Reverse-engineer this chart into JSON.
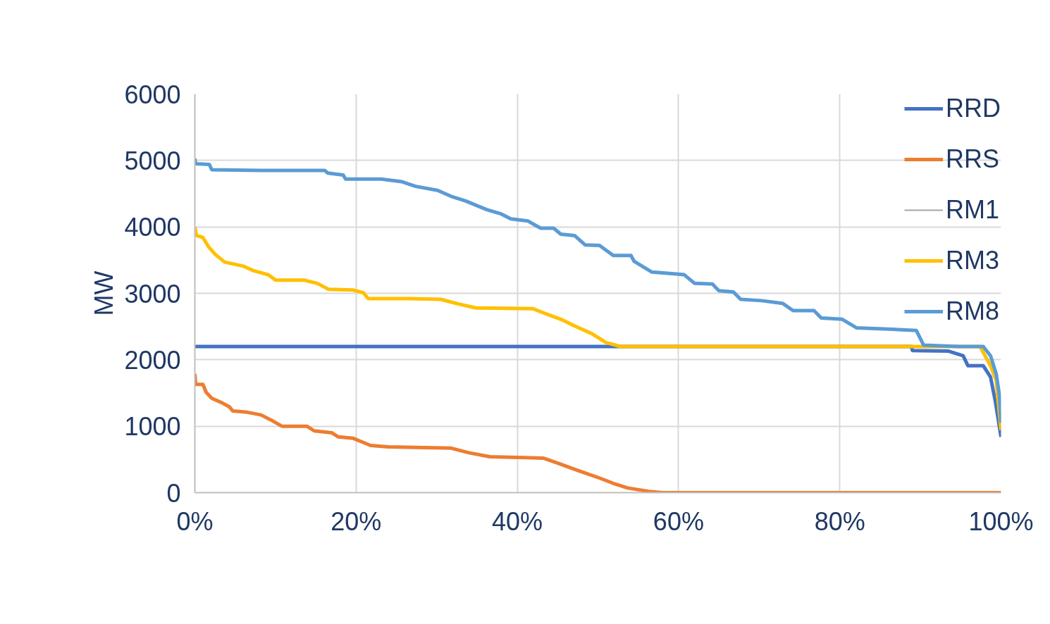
{
  "chart_data": {
    "type": "line",
    "ylabel": "MW",
    "xlim": [
      0,
      100
    ],
    "ylim": [
      0,
      6000
    ],
    "xticks": [
      {
        "value": 0,
        "label": "0%"
      },
      {
        "value": 20,
        "label": "20%"
      },
      {
        "value": 40,
        "label": "40%"
      },
      {
        "value": 60,
        "label": "60%"
      },
      {
        "value": 80,
        "label": "80%"
      },
      {
        "value": 100,
        "label": "100%"
      }
    ],
    "yticks": [
      0,
      1000,
      2000,
      3000,
      4000,
      5000,
      6000
    ],
    "grid": true,
    "legend": "top right",
    "line_style": "solid",
    "marker": "none",
    "series": [
      {
        "name": "RRD",
        "color": "#4472c4",
        "x": [
          0,
          88.9,
          89.0,
          93.5,
          95.3,
          95.9,
          97.8,
          98.7,
          99.3,
          100
        ],
        "values": [
          2200,
          2200,
          2140,
          2130,
          2060,
          1910,
          1910,
          1740,
          1370,
          840
        ]
      },
      {
        "name": "RRS",
        "color": "#ed7d31",
        "x": [
          0,
          0.1,
          1.0,
          1.4,
          2.1,
          3.4,
          4.3,
          4.7,
          6.5,
          8.2,
          9.5,
          10.8,
          13.9,
          14.8,
          17.0,
          17.8,
          19.6,
          21.8,
          24.0,
          31.8,
          34.0,
          36.6,
          43.2,
          44.9,
          47.6,
          50.2,
          51.9,
          53.7,
          56.3,
          58.0,
          100
        ],
        "values": [
          1790,
          1630,
          1630,
          1510,
          1420,
          1350,
          1290,
          1230,
          1210,
          1170,
          1090,
          1000,
          1000,
          930,
          900,
          840,
          820,
          710,
          690,
          670,
          600,
          540,
          520,
          450,
          330,
          220,
          140,
          70,
          20,
          0,
          0
        ]
      },
      {
        "name": "RM1",
        "color": "#a5a5a5"
      },
      {
        "name": "RM3",
        "color": "#ffc000",
        "x": [
          0,
          0.2,
          1.0,
          1.7,
          2.5,
          3.7,
          6.0,
          7.3,
          9.1,
          10.0,
          13.5,
          15.2,
          16.6,
          19.6,
          20.9,
          21.5,
          26.6,
          30.5,
          32.7,
          34.9,
          41.9,
          43.6,
          45.4,
          47.1,
          49.3,
          51.0,
          52.8,
          97.4,
          97.8,
          98.7,
          99.4,
          100
        ],
        "values": [
          4000,
          3870,
          3840,
          3700,
          3590,
          3470,
          3410,
          3340,
          3280,
          3200,
          3200,
          3150,
          3060,
          3050,
          3010,
          2920,
          2920,
          2910,
          2840,
          2780,
          2770,
          2690,
          2610,
          2510,
          2390,
          2260,
          2200,
          2200,
          2110,
          1910,
          1690,
          940
        ]
      },
      {
        "name": "RM8",
        "color": "#5b9bd5",
        "x": [
          0,
          0.1,
          1.8,
          2.1,
          8.2,
          16.1,
          16.5,
          18.4,
          18.7,
          23.1,
          25.7,
          27.4,
          30.1,
          31.8,
          33.6,
          36.2,
          37.9,
          39.2,
          41.3,
          42.3,
          42.9,
          44.5,
          45.4,
          47.1,
          48.4,
          50.2,
          51.9,
          54.1,
          54.5,
          56.7,
          58.9,
          60.7,
          62.0,
          64.2,
          65.0,
          66.8,
          67.7,
          70.3,
          72.9,
          74.2,
          76.8,
          77.7,
          80.3,
          82.1,
          86.5,
          89.5,
          90.4,
          94.8,
          97.8,
          98.7,
          99.4,
          99.8,
          100
        ],
        "values": [
          5030,
          4950,
          4940,
          4860,
          4850,
          4850,
          4810,
          4780,
          4720,
          4720,
          4680,
          4610,
          4550,
          4460,
          4390,
          4260,
          4200,
          4120,
          4090,
          4020,
          3980,
          3980,
          3890,
          3870,
          3730,
          3720,
          3570,
          3570,
          3480,
          3320,
          3300,
          3280,
          3150,
          3140,
          3040,
          3020,
          2910,
          2890,
          2850,
          2740,
          2740,
          2630,
          2610,
          2480,
          2460,
          2440,
          2220,
          2200,
          2200,
          2060,
          1790,
          1470,
          1050
        ]
      }
    ]
  }
}
